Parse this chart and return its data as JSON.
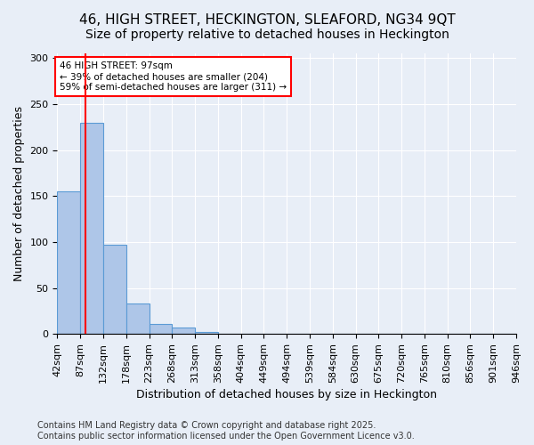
{
  "title1": "46, HIGH STREET, HECKINGTON, SLEAFORD, NG34 9QT",
  "title2": "Size of property relative to detached houses in Heckington",
  "xlabel": "Distribution of detached houses by size in Heckington",
  "ylabel": "Number of detached properties",
  "bins": [
    "42sqm",
    "87sqm",
    "132sqm",
    "178sqm",
    "223sqm",
    "268sqm",
    "313sqm",
    "358sqm",
    "404sqm",
    "449sqm",
    "494sqm",
    "539sqm",
    "584sqm",
    "630sqm",
    "675sqm",
    "720sqm",
    "765sqm",
    "810sqm",
    "856sqm",
    "901sqm",
    "946sqm"
  ],
  "values": [
    155,
    230,
    97,
    33,
    11,
    7,
    2,
    0,
    0,
    0,
    0,
    0,
    0,
    0,
    0,
    0,
    0,
    0,
    0,
    0
  ],
  "bar_color": "#aec6e8",
  "bar_edge_color": "#5b9bd5",
  "background_color": "#e8eef7",
  "annotation_text": "46 HIGH STREET: 97sqm\n← 39% of detached houses are smaller (204)\n59% of semi-detached houses are larger (311) →",
  "annotation_box_color": "white",
  "annotation_box_edge": "red",
  "ylim": [
    0,
    305
  ],
  "yticks": [
    0,
    50,
    100,
    150,
    200,
    250,
    300
  ],
  "footer1": "Contains HM Land Registry data © Crown copyright and database right 2025.",
  "footer2": "Contains public sector information licensed under the Open Government Licence v3.0.",
  "title1_fontsize": 11,
  "title2_fontsize": 10,
  "xlabel_fontsize": 9,
  "ylabel_fontsize": 9,
  "tick_fontsize": 8,
  "footer_fontsize": 7
}
